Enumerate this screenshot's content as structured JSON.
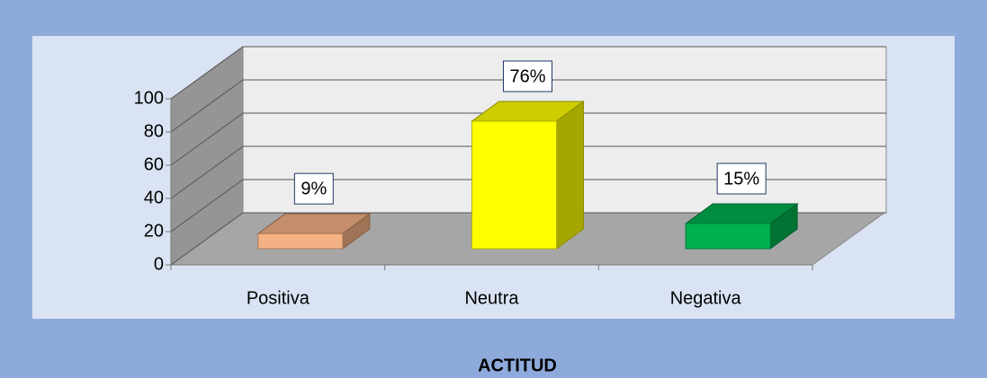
{
  "chart_data": {
    "type": "bar3d",
    "x_label": "ACTITUD",
    "categories": [
      "Positiva",
      "Neutra",
      "Negativa"
    ],
    "values": [
      9,
      76,
      15
    ],
    "value_labels": [
      "9%",
      "76%",
      "15%"
    ],
    "colors": [
      "#f4b183",
      "#ffff00",
      "#00b050"
    ],
    "ylim": [
      0,
      100
    ],
    "yticks": [
      0,
      20,
      40,
      60,
      80,
      100
    ],
    "grid": true
  }
}
